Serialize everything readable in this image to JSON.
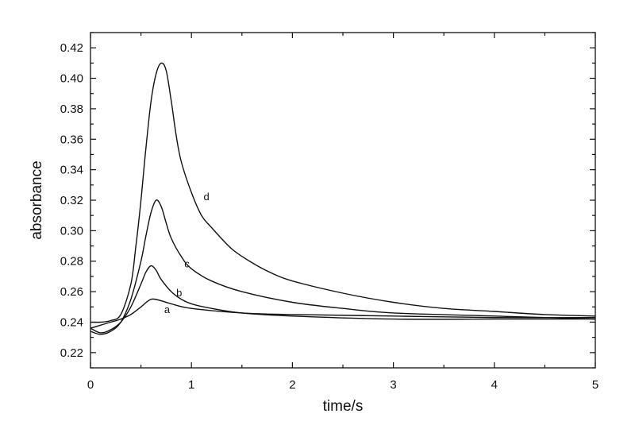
{
  "chart_data": {
    "type": "line",
    "title": "",
    "xlabel": "time/s",
    "ylabel": "absorbance",
    "xlim": [
      0,
      5
    ],
    "ylim": [
      0.21,
      0.43
    ],
    "x_ticks": [
      0,
      1,
      2,
      3,
      4,
      5
    ],
    "y_ticks": [
      0.22,
      0.24,
      0.26,
      0.28,
      0.3,
      0.32,
      0.34,
      0.36,
      0.38,
      0.4,
      0.42
    ],
    "x_tick_labels": [
      "0",
      "1",
      "2",
      "3",
      "4",
      "5"
    ],
    "y_tick_labels": [
      "0.22",
      "0.24",
      "0.26",
      "0.28",
      "0.30",
      "0.32",
      "0.34",
      "0.36",
      "0.38",
      "0.40",
      "0.42"
    ],
    "grid": false,
    "legend": "none",
    "series": [
      {
        "name": "a",
        "x": [
          0.0,
          0.1,
          0.2,
          0.3,
          0.4,
          0.5,
          0.6,
          0.7,
          0.8,
          1.0,
          1.5,
          2.0,
          3.0,
          4.0,
          5.0
        ],
        "y": [
          0.236,
          0.238,
          0.24,
          0.242,
          0.245,
          0.25,
          0.255,
          0.254,
          0.252,
          0.249,
          0.246,
          0.245,
          0.244,
          0.243,
          0.243
        ]
      },
      {
        "name": "b",
        "x": [
          0.0,
          0.1,
          0.2,
          0.3,
          0.4,
          0.5,
          0.55,
          0.6,
          0.65,
          0.7,
          0.8,
          0.9,
          1.0,
          1.2,
          1.5,
          2.0,
          3.0,
          4.0,
          5.0
        ],
        "y": [
          0.236,
          0.233,
          0.235,
          0.24,
          0.25,
          0.265,
          0.273,
          0.277,
          0.274,
          0.268,
          0.26,
          0.255,
          0.252,
          0.249,
          0.246,
          0.244,
          0.242,
          0.242,
          0.242
        ]
      },
      {
        "name": "c",
        "x": [
          0.0,
          0.1,
          0.2,
          0.3,
          0.4,
          0.5,
          0.55,
          0.6,
          0.65,
          0.7,
          0.75,
          0.8,
          0.9,
          1.0,
          1.2,
          1.5,
          2.0,
          2.5,
          3.0,
          4.0,
          5.0
        ],
        "y": [
          0.234,
          0.232,
          0.234,
          0.24,
          0.255,
          0.28,
          0.297,
          0.312,
          0.32,
          0.316,
          0.305,
          0.295,
          0.283,
          0.275,
          0.267,
          0.26,
          0.253,
          0.249,
          0.246,
          0.244,
          0.242
        ]
      },
      {
        "name": "d",
        "x": [
          0.0,
          0.1,
          0.2,
          0.3,
          0.4,
          0.45,
          0.5,
          0.55,
          0.6,
          0.65,
          0.7,
          0.75,
          0.8,
          0.85,
          0.9,
          1.0,
          1.1,
          1.2,
          1.4,
          1.6,
          1.8,
          2.0,
          2.5,
          3.0,
          3.5,
          4.0,
          4.5,
          5.0
        ],
        "y": [
          0.24,
          0.24,
          0.241,
          0.245,
          0.265,
          0.29,
          0.32,
          0.355,
          0.385,
          0.403,
          0.41,
          0.405,
          0.385,
          0.362,
          0.345,
          0.325,
          0.31,
          0.302,
          0.288,
          0.279,
          0.272,
          0.267,
          0.259,
          0.253,
          0.249,
          0.247,
          0.245,
          0.244
        ]
      }
    ],
    "curve_labels": [
      {
        "text": "a",
        "x": 0.73,
        "y": 0.246
      },
      {
        "text": "b",
        "x": 0.85,
        "y": 0.257
      },
      {
        "text": "c",
        "x": 0.93,
        "y": 0.276
      },
      {
        "text": "d",
        "x": 1.12,
        "y": 0.32
      }
    ]
  }
}
